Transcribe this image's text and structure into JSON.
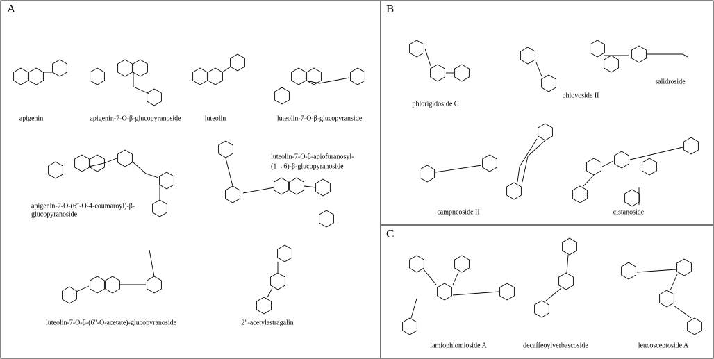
{
  "panels": [
    {
      "label": "A",
      "compounds": [
        {
          "lines": [
            "apigenin"
          ]
        },
        {
          "lines": [
            "apigenin-7-O-β-glucopyranoside"
          ]
        },
        {
          "lines": [
            "luteolin"
          ]
        },
        {
          "lines": [
            "luteolin-7-O-β-glucopyranside"
          ]
        },
        {
          "lines": [
            "apigenin-7-O-(6″-O-4-coumaroyl)-β-",
            "glucopyranoside"
          ]
        },
        {
          "lines": [
            "luteolin-7-O-β-apiofuranosyl-",
            "(1→6)-β-glucopyranoside"
          ]
        },
        {
          "lines": [
            "luteolin-7-O-β-(6″-O-acetate)-glucopyranoside"
          ]
        },
        {
          "lines": [
            "2″-acetylastragalin"
          ]
        }
      ]
    },
    {
      "label": "B",
      "compounds": [
        {
          "lines": [
            "phlorigidoside C"
          ]
        },
        {
          "lines": [
            "phloyoside II"
          ]
        },
        {
          "lines": [
            "salidroside"
          ]
        },
        {
          "lines": [
            "campneoside II"
          ]
        },
        {
          "lines": [
            "cistanoside"
          ]
        }
      ]
    },
    {
      "label": "C",
      "compounds": [
        {
          "lines": [
            "lamiophlomioside A"
          ]
        },
        {
          "lines": [
            "decaffeoylverbascoside"
          ]
        },
        {
          "lines": [
            "leucosceptoside A"
          ]
        }
      ]
    }
  ]
}
